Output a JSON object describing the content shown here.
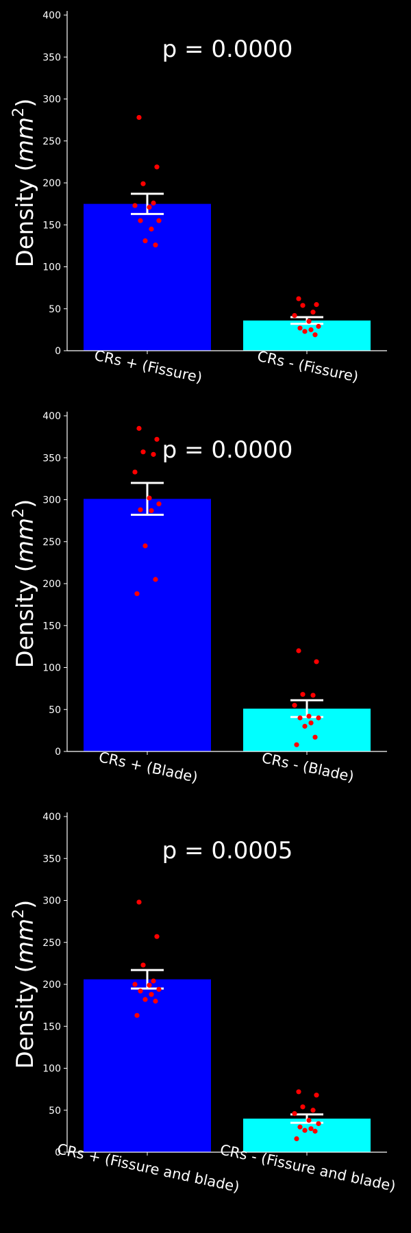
{
  "chart_data": [
    {
      "type": "bar",
      "annotation": "p = 0.0000",
      "ylabel": "Density (",
      "ylabel_unit": "mm",
      "ylabel_exp": "2",
      "ylabel_close": ")",
      "ylim": [
        0,
        400
      ],
      "yticks": [
        "0",
        "50",
        "100",
        "150",
        "200",
        "250",
        "300",
        "350",
        "400"
      ],
      "categories": [
        "CRs + (Fissure)",
        "CRs - (Fissure)"
      ],
      "values": [
        175,
        36
      ],
      "errors": [
        12,
        4
      ],
      "colors": [
        "#0000ff",
        "#00ffff"
      ],
      "points": [
        [
          278,
          219,
          199,
          176,
          173,
          171,
          155,
          155,
          145,
          131,
          126
        ],
        [
          62,
          55,
          54,
          46,
          42,
          35,
          29,
          27,
          25,
          23,
          19
        ]
      ],
      "point_color": "#ff0000",
      "grid": false
    },
    {
      "type": "bar",
      "annotation": "p = 0.0000",
      "ylabel": "Density (",
      "ylabel_unit": "mm",
      "ylabel_exp": "2",
      "ylabel_close": ")",
      "ylim": [
        0,
        400
      ],
      "yticks": [
        "0",
        "50",
        "100",
        "150",
        "200",
        "250",
        "300",
        "350",
        "400"
      ],
      "categories": [
        "CRs + (Blade)",
        "CRs - (Blade)"
      ],
      "values": [
        301,
        51
      ],
      "errors": [
        19,
        10
      ],
      "colors": [
        "#0000ff",
        "#00ffff"
      ],
      "points": [
        [
          385,
          372,
          357,
          354,
          333,
          302,
          295,
          288,
          287,
          245,
          205,
          188
        ],
        [
          120,
          107,
          68,
          67,
          55,
          42,
          40,
          40,
          34,
          30,
          17,
          8
        ]
      ],
      "point_color": "#ff0000",
      "grid": false
    },
    {
      "type": "bar",
      "annotation": "p = 0.0005",
      "ylabel": "Density (",
      "ylabel_unit": "mm",
      "ylabel_exp": "2",
      "ylabel_close": ")",
      "ylim": [
        0,
        400
      ],
      "yticks": [
        "0",
        "50",
        "100",
        "150",
        "200",
        "250",
        "300",
        "350",
        "400"
      ],
      "categories": [
        "CRs + (Fissure and blade)",
        "CRs - (Fissure and blade)"
      ],
      "values": [
        206,
        40
      ],
      "errors": [
        11,
        5
      ],
      "colors": [
        "#0000ff",
        "#00ffff"
      ],
      "points": [
        [
          298,
          257,
          223,
          204,
          200,
          199,
          194,
          192,
          188,
          182,
          180,
          163
        ],
        [
          72,
          68,
          54,
          50,
          46,
          38,
          34,
          30,
          28,
          26,
          25,
          16
        ]
      ],
      "point_color": "#ff0000",
      "grid": false
    }
  ]
}
